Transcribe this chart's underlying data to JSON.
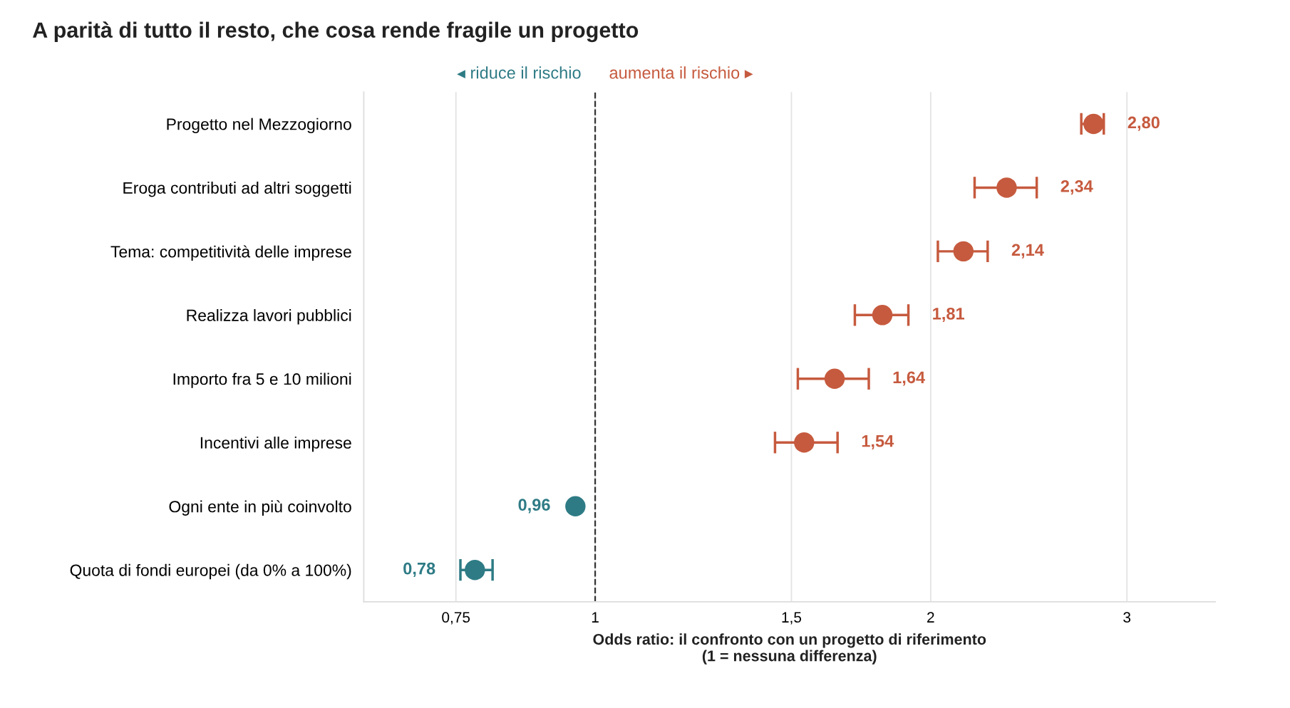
{
  "chart_data": {
    "type": "scatter",
    "orientation": "horizontal",
    "title": "A parità di tutto il resto, che cosa rende fragile un progetto",
    "xlabel": "Odds ratio: il confronto con un progetto di riferimento\n(1 = nessuna differenza)",
    "categories": [
      "Progetto nel Mezzogiorno",
      "Eroga contributi ad altri soggetti",
      "Tema: competitività delle imprese",
      "Realizza lavori pubblici",
      "Importo fra 5 e 10 milioni",
      "Incentivi alle imprese",
      "Ogni ente in più coinvolto",
      "Quota di fondi europei (da 0% a 100%)"
    ],
    "values": [
      2.8,
      2.34,
      2.14,
      1.81,
      1.64,
      1.54,
      0.96,
      0.78
    ],
    "errors": [
      [
        2.73,
        2.86
      ],
      [
        2.19,
        2.49
      ],
      [
        2.03,
        2.25
      ],
      [
        1.71,
        1.91
      ],
      [
        1.52,
        1.76
      ],
      [
        1.45,
        1.65
      ],
      null,
      [
        0.757,
        0.809
      ]
    ],
    "value_labels": [
      "2,80",
      "2,34",
      "2,14",
      "1,81",
      "1,64",
      "1,54",
      "0,96",
      "0,78"
    ],
    "colors": [
      "#c65a3e",
      "#c65a3e",
      "#c65a3e",
      "#c65a3e",
      "#c65a3e",
      "#c65a3e",
      "#2e7b85",
      "#2e7b85"
    ],
    "log": "x",
    "xlim": [
      0.62,
      3.6
    ],
    "xticks": [
      {
        "value": 0.75,
        "label": "0,75"
      },
      1,
      {
        "value": 1.5,
        "label": "1,5"
      },
      2,
      3
    ],
    "ref_lines": [
      {
        "axis": "x",
        "value": 1,
        "color": "#333333",
        "line_style": "dashed"
      }
    ],
    "annotations": [
      "◂ riduce il rischio",
      "aumenta il rischio ▸"
    ],
    "grid": "x",
    "marker": "circle",
    "legend": false
  }
}
